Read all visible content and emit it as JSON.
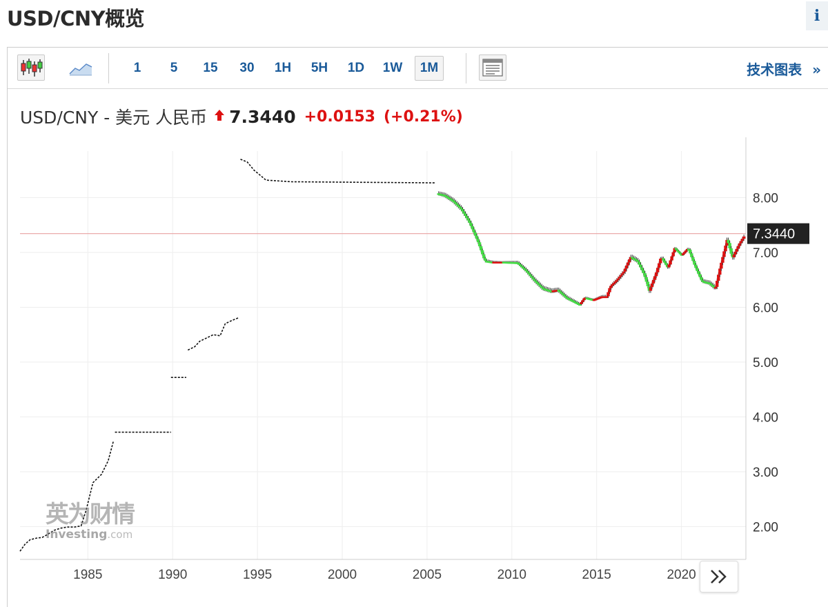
{
  "header": {
    "title": "USD/CNY概览",
    "info_label": "i"
  },
  "toolbar": {
    "intervals": [
      "1",
      "5",
      "15",
      "30",
      "1H",
      "5H",
      "1D",
      "1W",
      "1M"
    ],
    "selected_interval": "1M",
    "tech_chart_label": "技术图表",
    "tech_chart_arrow": "»"
  },
  "quote": {
    "name": "USD/CNY - 美元 人民币",
    "price": "7.3440",
    "change": "+0.0153",
    "change_pct": "(+0.21%)",
    "up_color": "#dd1111"
  },
  "watermark": {
    "brand_cn": "英为财情",
    "brand_en": "Investing",
    "brand_suffix": ".com"
  },
  "chart_data": {
    "type": "line",
    "title": "",
    "xlabel": "",
    "ylabel": "",
    "xlim": [
      1981,
      2023.8
    ],
    "ylim": [
      1.4,
      8.85
    ],
    "x_ticks": [
      "1985",
      "1990",
      "1995",
      "2000",
      "2005",
      "2010",
      "2015",
      "2020"
    ],
    "y_ticks": [
      "8.00",
      "7.00",
      "6.00",
      "5.00",
      "4.00",
      "3.00",
      "2.00"
    ],
    "current_price_label": "7.3440",
    "current_price_value": 7.344,
    "grid": true,
    "up_color": "#dd1111",
    "down_color": "#44dd44",
    "neutral_color": "#111111",
    "series": [
      {
        "segments": [
          [
            [
              1981.0,
              1.55
            ],
            [
              1981.3,
              1.68
            ],
            [
              1981.6,
              1.76
            ],
            [
              1982.0,
              1.79
            ],
            [
              1982.3,
              1.8
            ],
            [
              1982.6,
              1.85
            ],
            [
              1983.0,
              1.93
            ],
            [
              1983.4,
              1.97
            ],
            [
              1983.8,
              1.99
            ],
            [
              1984.2,
              1.99
            ],
            [
              1984.6,
              2.01
            ],
            [
              1984.9,
              2.3
            ],
            [
              1985.3,
              2.8
            ],
            [
              1985.8,
              2.95
            ],
            [
              1986.2,
              3.2
            ],
            [
              1986.5,
              3.55
            ]
          ],
          [
            [
              1986.6,
              3.72
            ],
            [
              1989.9,
              3.72
            ]
          ],
          [
            [
              1989.9,
              4.72
            ],
            [
              1990.8,
              4.72
            ]
          ],
          [
            [
              1990.9,
              5.22
            ],
            [
              1991.3,
              5.28
            ],
            [
              1991.6,
              5.38
            ],
            [
              1992.0,
              5.44
            ],
            [
              1992.4,
              5.5
            ],
            [
              1992.8,
              5.48
            ],
            [
              1993.1,
              5.7
            ],
            [
              1993.5,
              5.76
            ],
            [
              1993.9,
              5.81
            ]
          ],
          [
            [
              1994.0,
              8.7
            ],
            [
              1994.4,
              8.65
            ],
            [
              1994.8,
              8.5
            ],
            [
              1995.2,
              8.4
            ],
            [
              1995.5,
              8.32
            ],
            [
              1996.0,
              8.31
            ],
            [
              1997.0,
              8.29
            ],
            [
              2005.5,
              8.27
            ]
          ]
        ]
      },
      {
        "segments": [
          [
            [
              2005.6,
              8.08
            ],
            [
              2006.0,
              8.05
            ],
            [
              2006.5,
              7.95
            ],
            [
              2007.0,
              7.8
            ],
            [
              2007.5,
              7.55
            ],
            [
              2008.0,
              7.2
            ],
            [
              2008.4,
              6.85
            ],
            [
              2008.8,
              6.83
            ],
            [
              2009.5,
              6.83
            ],
            [
              2010.3,
              6.82
            ],
            [
              2010.8,
              6.68
            ],
            [
              2011.3,
              6.5
            ],
            [
              2011.8,
              6.35
            ],
            [
              2012.3,
              6.3
            ],
            [
              2012.7,
              6.32
            ],
            [
              2013.2,
              6.18
            ],
            [
              2013.7,
              6.1
            ],
            [
              2014.0,
              6.05
            ],
            [
              2014.3,
              6.18
            ],
            [
              2014.8,
              6.14
            ],
            [
              2015.3,
              6.2
            ],
            [
              2015.6,
              6.2
            ],
            [
              2015.8,
              6.38
            ],
            [
              2016.2,
              6.5
            ],
            [
              2016.6,
              6.65
            ],
            [
              2017.0,
              6.92
            ],
            [
              2017.4,
              6.85
            ],
            [
              2017.8,
              6.6
            ],
            [
              2018.1,
              6.3
            ],
            [
              2018.5,
              6.62
            ],
            [
              2018.8,
              6.92
            ],
            [
              2019.2,
              6.72
            ],
            [
              2019.6,
              7.08
            ],
            [
              2020.0,
              6.95
            ],
            [
              2020.4,
              7.08
            ],
            [
              2020.8,
              6.75
            ],
            [
              2021.2,
              6.48
            ],
            [
              2021.6,
              6.45
            ],
            [
              2022.0,
              6.35
            ],
            [
              2022.3,
              6.75
            ],
            [
              2022.7,
              7.25
            ],
            [
              2023.0,
              6.9
            ],
            [
              2023.4,
              7.15
            ],
            [
              2023.7,
              7.3
            ]
          ]
        ]
      }
    ]
  }
}
